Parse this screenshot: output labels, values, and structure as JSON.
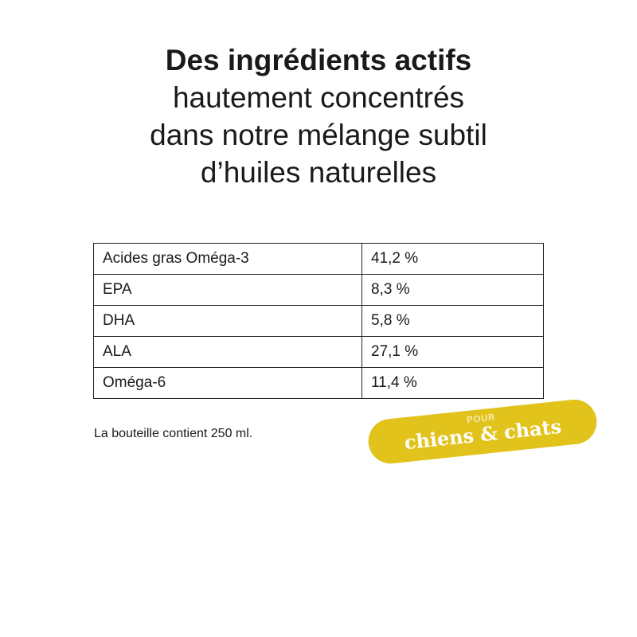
{
  "heading": {
    "bold_line": "Des ingrédients actifs",
    "lines": [
      "hautement concentrés",
      "dans notre mélange subtil",
      "d’huiles naturelles"
    ]
  },
  "table": {
    "rows": [
      {
        "name": "Acides gras Oméga-3",
        "value": "41,2 %"
      },
      {
        "name": "EPA",
        "value": "8,3 %"
      },
      {
        "name": "DHA",
        "value": "5,8 %"
      },
      {
        "name": "ALA",
        "value": "27,1 %"
      },
      {
        "name": "Oméga-6",
        "value": "11,4 %"
      }
    ]
  },
  "note": "La bouteille contient 250 ml.",
  "badge": {
    "small": "POUR",
    "big": "chiens & chats",
    "color": "#e2c31c"
  }
}
